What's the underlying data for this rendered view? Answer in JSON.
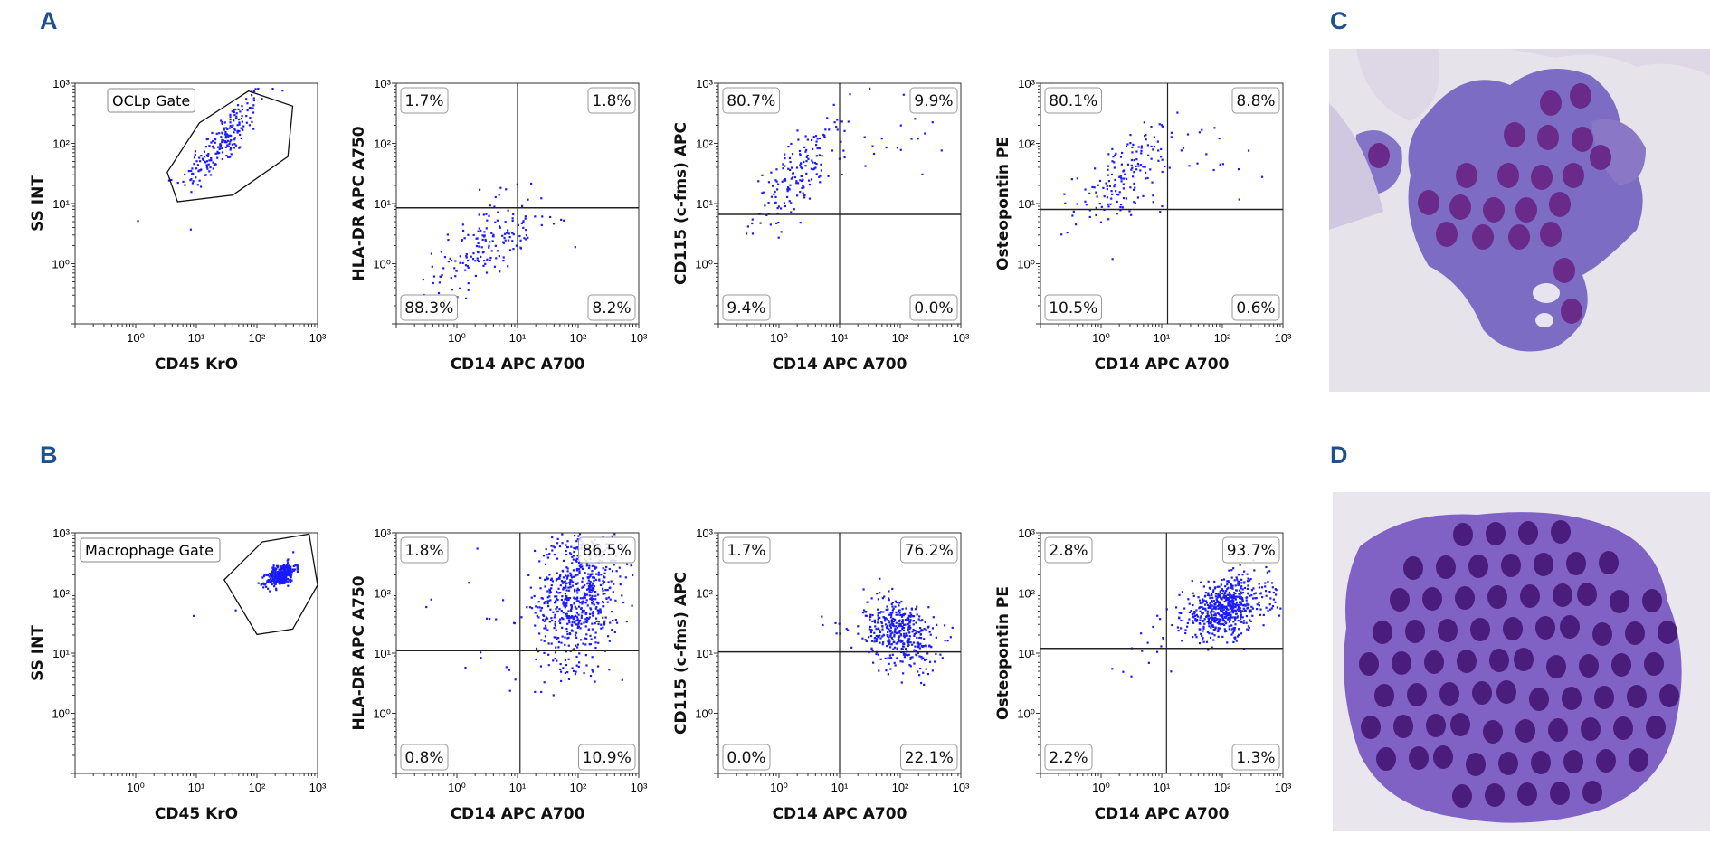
{
  "panels": {
    "a": "A",
    "b": "B",
    "c": "C",
    "d": "D"
  },
  "colors": {
    "points": "#1a1aff",
    "axis": "#000000",
    "panel_letter": "#1f4f8f"
  },
  "chart_data": [
    {
      "id": "A1",
      "type": "scatter",
      "scale": "log",
      "xlabel": "CD45 KrO",
      "ylabel": "SS INT",
      "xlim_log10": [
        -1,
        3
      ],
      "ylim_log10": [
        -1,
        3
      ],
      "x_ticks": [
        "10⁰",
        "10¹",
        "10²",
        "10³"
      ],
      "y_ticks": [
        "10⁰",
        "10¹",
        "10²",
        "10³"
      ],
      "gate": {
        "label": "OCLp Gate",
        "polygon_log10": [
          [
            0.69,
            1.03
          ],
          [
            0.52,
            1.52
          ],
          [
            1.05,
            2.34
          ],
          [
            1.86,
            2.87
          ],
          [
            2.59,
            2.62
          ],
          [
            2.51,
            1.78
          ],
          [
            1.6,
            1.14
          ]
        ]
      },
      "clusters_log10": [
        {
          "cx": 1.45,
          "cy": 2.05,
          "sx": 0.35,
          "sy": 0.42,
          "rho": 0.85,
          "n": 210
        }
      ],
      "quadrants": null
    },
    {
      "id": "A2",
      "type": "scatter",
      "scale": "log",
      "xlabel": "CD14 APC A700",
      "ylabel": "HLA-DR APC A750",
      "xlim_log10": [
        -1,
        3
      ],
      "ylim_log10": [
        -1,
        3
      ],
      "x_ticks": [
        "10⁰",
        "10¹",
        "10²",
        "10³"
      ],
      "y_ticks": [
        "10⁰",
        "10¹",
        "10²",
        "10³"
      ],
      "quadrant_split": {
        "x": 10,
        "y": 8.5
      },
      "quadrants": {
        "upper_left": "1.7%",
        "upper_right": "1.8%",
        "lower_left": "88.3%",
        "lower_right": "8.2%"
      },
      "clusters_log10": [
        {
          "cx": 0.45,
          "cy": 0.3,
          "sx": 0.4,
          "sy": 0.38,
          "rho": 0.6,
          "n": 160
        },
        {
          "cx": 1.3,
          "cy": 0.45,
          "sx": 0.35,
          "sy": 0.2,
          "rho": 0,
          "n": 12
        },
        {
          "cx": 0.5,
          "cy": 1.25,
          "sx": 0.15,
          "sy": 0.05,
          "rho": 0,
          "n": 3
        }
      ]
    },
    {
      "id": "A3",
      "type": "scatter",
      "scale": "log",
      "xlabel": "CD14 APC A700",
      "ylabel": "CD115  (c-fms) APC",
      "xlim_log10": [
        -1,
        3
      ],
      "ylim_log10": [
        -1,
        3
      ],
      "x_ticks": [
        "10⁰",
        "10¹",
        "10²",
        "10³"
      ],
      "y_ticks": [
        "10⁰",
        "10¹",
        "10²",
        "10³"
      ],
      "quadrant_split": {
        "x": 10,
        "y": 6.6
      },
      "quadrants": {
        "upper_left": "80.7%",
        "upper_right": "9.9%",
        "lower_left": "9.4%",
        "lower_right": "0.0%"
      },
      "clusters_log10": [
        {
          "cx": 0.35,
          "cy": 1.5,
          "sx": 0.38,
          "sy": 0.45,
          "rho": 0.75,
          "n": 170
        },
        {
          "cx": 1.7,
          "cy": 2.1,
          "sx": 0.5,
          "sy": 0.35,
          "rho": 0,
          "n": 20
        }
      ]
    },
    {
      "id": "A4",
      "type": "scatter",
      "scale": "log",
      "xlabel": "CD14 APC A700",
      "ylabel": "Osteopontin PE",
      "xlim_log10": [
        -1,
        3
      ],
      "ylim_log10": [
        -1,
        3
      ],
      "x_ticks": [
        "10⁰",
        "10¹",
        "10²",
        "10³"
      ],
      "y_ticks": [
        "10⁰",
        "10¹",
        "10²",
        "10³"
      ],
      "quadrant_split": {
        "x": 12.5,
        "y": 8
      },
      "quadrants": {
        "upper_left": "80.1%",
        "upper_right": "8.8%",
        "lower_left": "10.5%",
        "lower_right": "0.6%"
      },
      "clusters_log10": [
        {
          "cx": 0.4,
          "cy": 1.45,
          "sx": 0.42,
          "sy": 0.42,
          "rho": 0.65,
          "n": 165
        },
        {
          "cx": 1.8,
          "cy": 1.8,
          "sx": 0.45,
          "sy": 0.4,
          "rho": 0,
          "n": 15
        }
      ]
    },
    {
      "id": "B1",
      "type": "scatter",
      "scale": "log",
      "xlabel": "CD45 KrO",
      "ylabel": "SS INT",
      "xlim_log10": [
        -1,
        3
      ],
      "ylim_log10": [
        -1,
        3
      ],
      "x_ticks": [
        "10⁰",
        "10¹",
        "10²",
        "10³"
      ],
      "y_ticks": [
        "10⁰",
        "10¹",
        "10²",
        "10³"
      ],
      "gate": {
        "label": "Macrophage Gate",
        "polygon_log10": [
          [
            1.46,
            2.22
          ],
          [
            2.09,
            2.85
          ],
          [
            2.86,
            2.98
          ],
          [
            3.0,
            2.13
          ],
          [
            2.59,
            1.4
          ],
          [
            2.0,
            1.31
          ]
        ]
      },
      "clusters_log10": [
        {
          "cx": 2.4,
          "cy": 2.3,
          "sx": 0.12,
          "sy": 0.1,
          "rho": 0.5,
          "n": 320
        },
        {
          "cx": 1.0,
          "cy": 1.8,
          "sx": 0.4,
          "sy": 0.1,
          "rho": 0,
          "n": 2
        }
      ],
      "quadrants": null
    },
    {
      "id": "B2",
      "type": "scatter",
      "scale": "log",
      "xlabel": "CD14 APC A700",
      "ylabel": "HLA-DR APC A750",
      "xlim_log10": [
        -1,
        3
      ],
      "ylim_log10": [
        -1,
        3
      ],
      "x_ticks": [
        "10⁰",
        "10¹",
        "10²",
        "10³"
      ],
      "y_ticks": [
        "10⁰",
        "10¹",
        "10²",
        "10³"
      ],
      "quadrant_split": {
        "x": 11,
        "y": 11
      },
      "quadrants": {
        "upper_left": "1.8%",
        "upper_right": "86.5%",
        "lower_left": "0.8%",
        "lower_right": "10.9%"
      },
      "clusters_log10": [
        {
          "cx": 2.0,
          "cy": 2.0,
          "sx": 0.35,
          "sy": 0.6,
          "rho": 0.2,
          "n": 700
        },
        {
          "cx": 0.3,
          "cy": 1.3,
          "sx": 0.4,
          "sy": 0.5,
          "rho": 0,
          "n": 14
        }
      ]
    },
    {
      "id": "B3",
      "type": "scatter",
      "scale": "log",
      "xlabel": "CD14 APC A700",
      "ylabel": "CD115  (c-fms) APC",
      "xlim_log10": [
        -1,
        3
      ],
      "ylim_log10": [
        -1,
        3
      ],
      "x_ticks": [
        "10⁰",
        "10¹",
        "10²",
        "10³"
      ],
      "y_ticks": [
        "10⁰",
        "10¹",
        "10²",
        "10³"
      ],
      "quadrant_split": {
        "x": 10,
        "y": 10.5
      },
      "quadrants": {
        "upper_left": "1.7%",
        "upper_right": "76.2%",
        "lower_left": "0.0%",
        "lower_right": "22.1%"
      },
      "clusters_log10": [
        {
          "cx": 2.0,
          "cy": 1.35,
          "sx": 0.3,
          "sy": 0.3,
          "rho": -0.3,
          "n": 420
        },
        {
          "cx": 0.9,
          "cy": 1.45,
          "sx": 0.2,
          "sy": 0.1,
          "rho": 0,
          "n": 8
        }
      ]
    },
    {
      "id": "B4",
      "type": "scatter",
      "scale": "log",
      "xlabel": "CD14 APC A700",
      "ylabel": "Osteopontin PE",
      "xlim_log10": [
        -1,
        3
      ],
      "ylim_log10": [
        -1,
        3
      ],
      "x_ticks": [
        "10⁰",
        "10¹",
        "10²",
        "10³"
      ],
      "y_ticks": [
        "10⁰",
        "10¹",
        "10²",
        "10³"
      ],
      "quadrant_split": {
        "x": 12,
        "y": 12
      },
      "quadrants": {
        "upper_left": "2.8%",
        "upper_right": "93.7%",
        "lower_left": "2.2%",
        "lower_right": "1.3%"
      },
      "clusters_log10": [
        {
          "cx": 2.05,
          "cy": 1.75,
          "sx": 0.35,
          "sy": 0.25,
          "rho": 0.3,
          "n": 620
        },
        {
          "cx": 0.6,
          "cy": 0.95,
          "sx": 0.35,
          "sy": 0.25,
          "rho": 0.3,
          "n": 14
        }
      ]
    }
  ]
}
